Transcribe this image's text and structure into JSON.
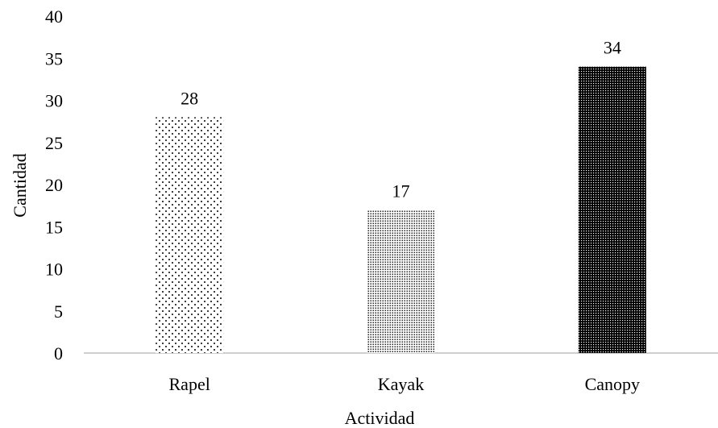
{
  "chart_data": {
    "type": "bar",
    "title": "",
    "xlabel": "Actividad",
    "ylabel": "Cantidad",
    "categories": [
      "Rapel",
      "Kayak",
      "Canopy"
    ],
    "values": [
      28,
      17,
      34
    ],
    "data_labels": [
      "28",
      "17",
      "34"
    ],
    "ylim": [
      0,
      40
    ],
    "yticks": [
      0,
      5,
      10,
      15,
      20,
      25,
      30,
      35,
      40
    ],
    "grid": false,
    "legend": "none",
    "bar_patterns": [
      "sparse-dots",
      "medium-dots",
      "dense-dots"
    ]
  }
}
